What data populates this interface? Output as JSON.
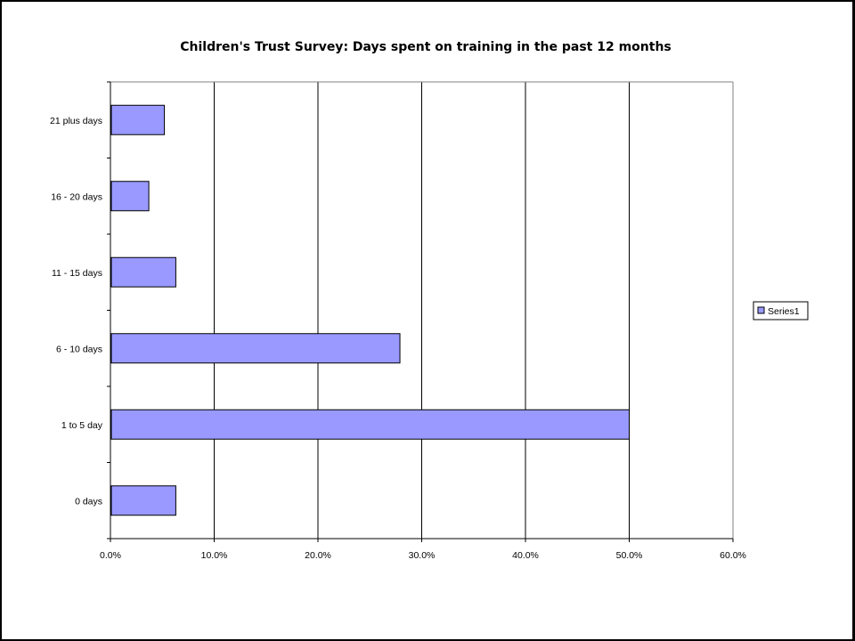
{
  "chart_data": {
    "type": "bar",
    "orientation": "horizontal",
    "title": "Children's Trust Survey: Days spent on training in the past 12 months",
    "xlabel": "",
    "ylabel": "",
    "categories": [
      "0 days",
      "1 to 5 day",
      "6 - 10 days",
      "11 - 15 days",
      "16 - 20 days",
      "21 plus days"
    ],
    "series": [
      {
        "name": "Series1",
        "color": "#9999ff",
        "values": [
          0.063,
          0.5,
          0.279,
          0.063,
          0.037,
          0.052
        ]
      }
    ],
    "xlim": [
      0,
      0.6
    ],
    "x_ticks": [
      0,
      0.1,
      0.2,
      0.3,
      0.4,
      0.5,
      0.6
    ],
    "x_tick_labels": [
      "0.0%",
      "10.0%",
      "20.0%",
      "30.0%",
      "40.0%",
      "50.0%",
      "60.0%"
    ],
    "grid": "vertical major gridlines",
    "legend": "right"
  }
}
